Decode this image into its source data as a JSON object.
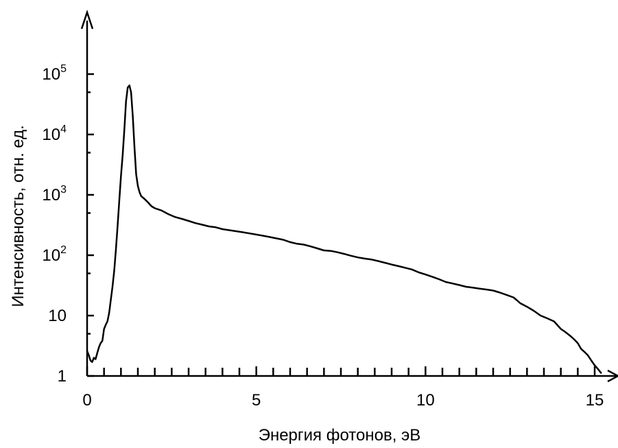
{
  "chart_data": {
    "type": "line",
    "title": "",
    "xlabel": "Энергия фотонов, эВ",
    "ylabel": "Интенсивность, отн. ед.",
    "xlim": [
      0,
      15.5
    ],
    "ylim": [
      1,
      100000
    ],
    "y_scale": "log",
    "grid": false,
    "x_tick_labels": [
      "0",
      "5",
      "10",
      "15"
    ],
    "x_tick_values": [
      0,
      5,
      10,
      15
    ],
    "x_minor_ticks": [
      0.5,
      1,
      1.5,
      2,
      2.5,
      3,
      3.5,
      4,
      4.5,
      5.5,
      6,
      6.5,
      7,
      7.5,
      8,
      8.5,
      9,
      9.5,
      10.5,
      11,
      11.5,
      12,
      12.5,
      13,
      13.5,
      14,
      14.5
    ],
    "y_ticks": [
      {
        "value": 1,
        "base": "1",
        "exp": ""
      },
      {
        "value": 10,
        "base": "10",
        "exp": ""
      },
      {
        "value": 100,
        "base": "10",
        "exp": "2"
      },
      {
        "value": 1000,
        "base": "10",
        "exp": "3"
      },
      {
        "value": 10000,
        "base": "10",
        "exp": "4"
      },
      {
        "value": 100000,
        "base": "10",
        "exp": "5"
      }
    ],
    "series": [
      {
        "x": [
          0,
          0.05,
          0.1,
          0.15,
          0.2,
          0.25,
          0.3,
          0.35,
          0.4,
          0.45,
          0.5,
          0.55,
          0.6,
          0.65,
          0.7,
          0.75,
          0.8,
          0.85,
          0.9,
          0.95,
          1.0,
          1.05,
          1.1,
          1.15,
          1.2,
          1.25,
          1.3,
          1.35,
          1.4,
          1.45,
          1.5,
          1.55,
          1.6,
          1.65,
          1.7,
          1.8,
          1.9,
          2.0,
          2.2,
          2.4,
          2.6,
          2.8,
          3.0,
          3.2,
          3.4,
          3.6,
          3.8,
          4.0,
          4.2,
          4.4,
          4.6,
          4.8,
          5.0,
          5.2,
          5.4,
          5.6,
          5.8,
          6.0,
          6.2,
          6.4,
          6.6,
          6.8,
          7.0,
          7.2,
          7.4,
          7.6,
          7.8,
          8.0,
          8.2,
          8.4,
          8.6,
          8.8,
          9.0,
          9.2,
          9.4,
          9.6,
          9.8,
          10.0,
          10.2,
          10.4,
          10.6,
          10.8,
          11.0,
          11.2,
          11.4,
          11.6,
          11.8,
          12.0,
          12.2,
          12.4,
          12.6,
          12.7,
          12.8,
          13.0,
          13.2,
          13.4,
          13.6,
          13.8,
          14.0,
          14.1,
          14.2,
          14.3,
          14.4,
          14.5,
          14.6,
          14.7,
          14.8,
          14.9,
          15.0,
          15.1,
          15.2
        ],
        "y": [
          2.6,
          2.2,
          1.8,
          1.7,
          2.0,
          1.9,
          2.4,
          3.0,
          3.5,
          3.8,
          6.0,
          7.0,
          8.0,
          11,
          18,
          30,
          55,
          120,
          300,
          800,
          2000,
          4500,
          12000,
          35000,
          60000,
          65000,
          50000,
          20000,
          6000,
          2200,
          1400,
          1100,
          950,
          900,
          850,
          750,
          650,
          600,
          550,
          480,
          430,
          400,
          370,
          340,
          320,
          300,
          290,
          270,
          260,
          250,
          240,
          230,
          220,
          210,
          200,
          190,
          180,
          165,
          155,
          150,
          140,
          130,
          120,
          118,
          112,
          105,
          98,
          92,
          88,
          85,
          80,
          75,
          70,
          66,
          62,
          58,
          52,
          48,
          44,
          40,
          36,
          34,
          32,
          30,
          29,
          28,
          27,
          26,
          24,
          22,
          20,
          18,
          16,
          14,
          12,
          10,
          9,
          8,
          6,
          5.5,
          5,
          4.5,
          4,
          3.5,
          2.8,
          2.5,
          2.2,
          1.8,
          1.5,
          1.3,
          1.1
        ]
      }
    ]
  }
}
